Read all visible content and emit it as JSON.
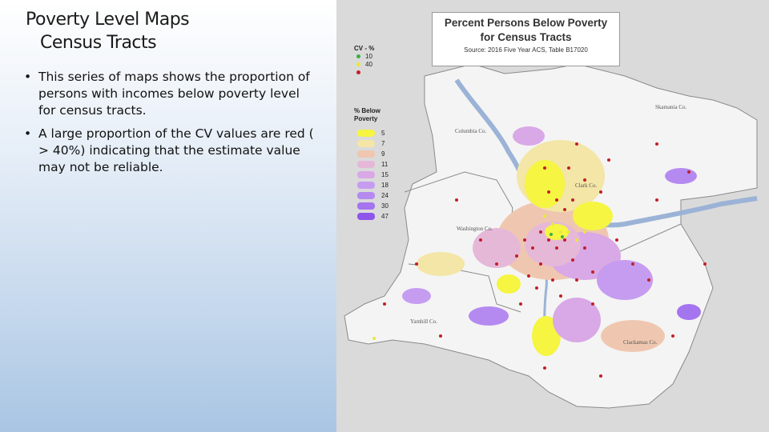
{
  "slide": {
    "title_line1": "Poverty Level Maps",
    "title_line2": "Census Tracts",
    "bullets": [
      "This series of maps shows the proportion of persons with incomes below poverty level for census tracts.",
      "A large proportion of the CV values are red ( > 40%) indicating that the estimate value may not be reliable."
    ],
    "bullet_glyph": "•"
  },
  "map": {
    "title_line1": "Percent Persons Below Poverty",
    "title_line2": "for Census Tracts",
    "source": "Source: 2016 Five Year ACS, Table B17020",
    "cv_legend": {
      "title": "CV - %",
      "items": [
        {
          "label": "10",
          "color": "#3cb043"
        },
        {
          "label": "40",
          "color": "#e8e83a"
        },
        {
          "label": "",
          "color": "#c0202a"
        }
      ]
    },
    "poverty_legend": {
      "title_line1": "% Below",
      "title_line2": "Poverty",
      "items": [
        {
          "label": "5",
          "color": "#f5f542"
        },
        {
          "label": "7",
          "color": "#f3e6a6"
        },
        {
          "label": "9",
          "color": "#efc7b0"
        },
        {
          "label": "11",
          "color": "#e6b8d8"
        },
        {
          "label": "15",
          "color": "#d9a8e6"
        },
        {
          "label": "18",
          "color": "#c69cf0"
        },
        {
          "label": "24",
          "color": "#b58af0"
        },
        {
          "label": "30",
          "color": "#a574ef"
        },
        {
          "label": "47",
          "color": "#8e55ea"
        }
      ]
    },
    "places": {
      "columbia": "Columbia Co.",
      "skamania": "Skamania Co.",
      "clark": "Clark Co.",
      "washington": "Washington Co.",
      "yamhill": "Yamhill Co.",
      "clackamas": "Clackamas Co."
    }
  }
}
